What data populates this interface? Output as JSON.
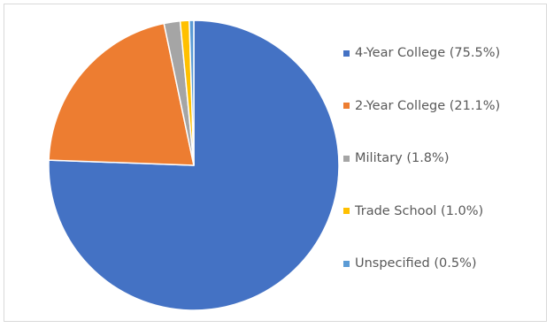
{
  "chart_data": {
    "type": "pie",
    "title": "",
    "start_angle_deg": 0,
    "direction": "clockwise",
    "legend_position": "right",
    "slices": [
      {
        "label": "4-Year College (75.5%)",
        "value": 75.5,
        "color": "#4472C4"
      },
      {
        "label": "2-Year College (21.1%)",
        "value": 21.1,
        "color": "#ED7D31"
      },
      {
        "label": "Military (1.8%)",
        "value": 1.8,
        "color": "#A5A5A5"
      },
      {
        "label": "Trade School (1.0%)",
        "value": 1.0,
        "color": "#FFC000"
      },
      {
        "label": "Unspecified (0.5%)",
        "value": 0.5,
        "color": "#5B9BD5"
      }
    ]
  }
}
